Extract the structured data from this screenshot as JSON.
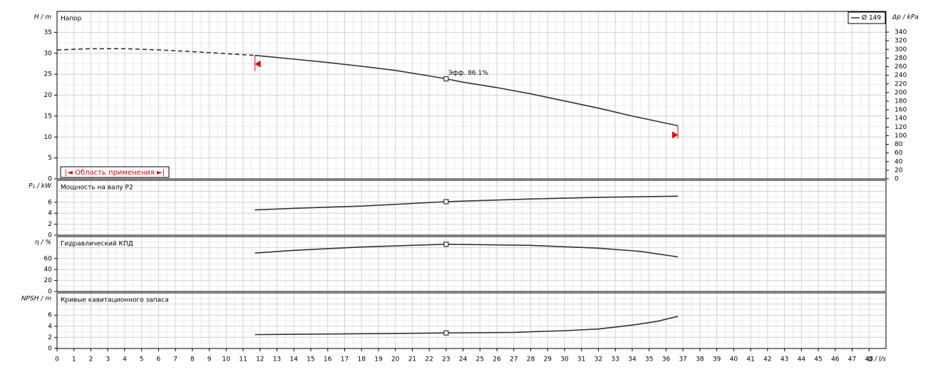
{
  "chart_data": [
    {
      "type": "line",
      "title": "Напор",
      "ylabel": "H / m",
      "y2label": "Δp / kPa",
      "legend": "Ø 149",
      "range_label": "|◄ Область применения ►|",
      "xlim": [
        0,
        49
      ],
      "ylim": [
        0,
        40
      ],
      "yticks": [
        0,
        5,
        10,
        15,
        20,
        25,
        30,
        35
      ],
      "y2lim": [
        0,
        388
      ],
      "y2ticks": [
        0,
        20,
        40,
        60,
        80,
        100,
        120,
        140,
        160,
        180,
        200,
        220,
        240,
        260,
        280,
        300,
        320,
        340
      ],
      "grid": true,
      "color": "#333333",
      "series": [
        {
          "style": "dashed",
          "x": [
            0,
            2,
            4,
            6,
            8,
            10,
            11.7
          ],
          "values": [
            30.8,
            31.1,
            31.1,
            30.8,
            30.4,
            29.9,
            29.5
          ]
        },
        {
          "style": "solid",
          "x": [
            11.7,
            14,
            16,
            18,
            20,
            22,
            23,
            24,
            26,
            28,
            30,
            32,
            34,
            36,
            36.7
          ],
          "values": [
            29.5,
            28.6,
            27.8,
            26.9,
            25.9,
            24.6,
            23.9,
            23.1,
            21.8,
            20.3,
            18.6,
            16.9,
            15.0,
            13.3,
            12.7
          ]
        }
      ],
      "points": [
        {
          "x": 23,
          "y": 23.9,
          "label": "Эфф. 86.1%"
        }
      ]
    },
    {
      "type": "line",
      "title": "Мощность на валу P2",
      "ylabel": "P₂ / kW",
      "xlim": [
        0,
        49
      ],
      "ylim": [
        0,
        10
      ],
      "yticks": [
        0,
        2,
        4,
        6
      ],
      "grid": true,
      "color": "#333333",
      "series": [
        {
          "style": "solid",
          "x": [
            11.7,
            14,
            18,
            23,
            28,
            32,
            36.7
          ],
          "values": [
            4.6,
            4.9,
            5.3,
            6.1,
            6.6,
            6.9,
            7.1
          ]
        }
      ],
      "points": [
        {
          "x": 23,
          "y": 6.1
        }
      ]
    },
    {
      "type": "line",
      "title": "Гидравлический КПД",
      "ylabel": "η / %",
      "xlim": [
        0,
        49
      ],
      "ylim": [
        0,
        100
      ],
      "yticks": [
        0,
        20,
        40,
        60
      ],
      "grid": true,
      "color": "#333333",
      "series": [
        {
          "style": "solid",
          "x": [
            11.7,
            14,
            18,
            23,
            28,
            32,
            34.5,
            36.7
          ],
          "values": [
            70,
            75,
            81,
            86.1,
            84,
            79,
            73,
            63
          ]
        }
      ],
      "points": [
        {
          "x": 23,
          "y": 86.1
        }
      ]
    },
    {
      "type": "line",
      "title": "Кривые кавитационного запаса",
      "ylabel": "NPSH / m",
      "xlabel": "Q / l/s",
      "xlim": [
        0,
        49
      ],
      "ylim": [
        0,
        10
      ],
      "yticks": [
        0,
        2,
        4,
        6
      ],
      "xticks": [
        0,
        1,
        2,
        3,
        4,
        5,
        6,
        7,
        8,
        9,
        10,
        11,
        12,
        13,
        14,
        15,
        16,
        17,
        18,
        19,
        20,
        21,
        22,
        23,
        24,
        25,
        26,
        27,
        28,
        29,
        30,
        31,
        32,
        33,
        34,
        35,
        36,
        37,
        38,
        39,
        40,
        41,
        42,
        43,
        44,
        45,
        46,
        47,
        48
      ],
      "grid": true,
      "color": "#333333",
      "series": [
        {
          "style": "solid",
          "x": [
            11.7,
            16,
            20,
            23,
            27,
            30,
            32,
            34,
            35.5,
            36.7
          ],
          "values": [
            2.5,
            2.6,
            2.7,
            2.8,
            2.9,
            3.2,
            3.5,
            4.2,
            4.9,
            5.8
          ]
        }
      ],
      "points": [
        {
          "x": 23,
          "y": 2.8
        }
      ]
    }
  ]
}
